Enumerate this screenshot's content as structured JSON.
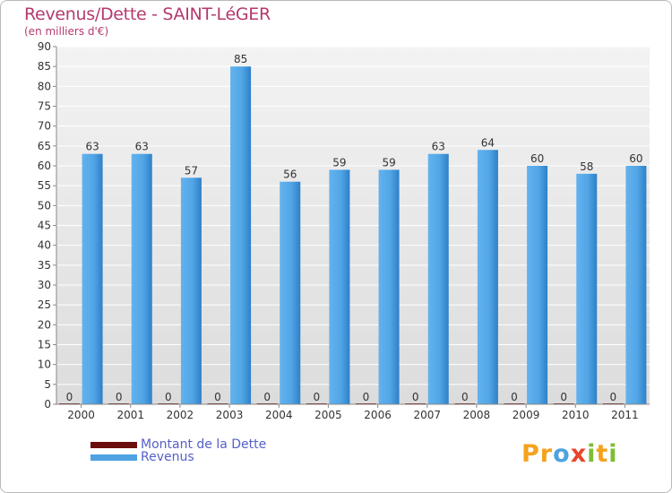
{
  "chart_data": {
    "type": "bar",
    "title": "Revenus/Dette - SAINT-LéGER",
    "subtitle": "(en milliers d'€)",
    "categories": [
      "2000",
      "2001",
      "2002",
      "2003",
      "2004",
      "2005",
      "2006",
      "2007",
      "2008",
      "2009",
      "2010",
      "2011"
    ],
    "series": [
      {
        "name": "Montant de la Dette",
        "color": "#6b0d0d",
        "values": [
          0,
          0,
          0,
          0,
          0,
          0,
          0,
          0,
          0,
          0,
          0,
          0
        ]
      },
      {
        "name": "Revenus",
        "color": "#4fa3e3",
        "values": [
          63,
          63,
          57,
          85,
          56,
          59,
          59,
          63,
          64,
          60,
          58,
          60
        ]
      }
    ],
    "ylim": [
      0,
      90
    ],
    "yticks": [
      0,
      5,
      10,
      15,
      20,
      25,
      30,
      35,
      40,
      45,
      50,
      55,
      60,
      65,
      70,
      75,
      80,
      85,
      90
    ],
    "grid": true,
    "legend_position": "bottom-left"
  },
  "logo": {
    "letters": [
      {
        "char": "P",
        "color": "#f5a21c"
      },
      {
        "char": "r",
        "color": "#f5a21c"
      },
      {
        "char": "o",
        "color": "#4da3e0"
      },
      {
        "char": "x",
        "color": "#e8452c"
      },
      {
        "char": "i",
        "color": "#7dbd35"
      },
      {
        "char": "t",
        "color": "#f5a21c"
      },
      {
        "char": "i",
        "color": "#7dbd35"
      }
    ]
  }
}
